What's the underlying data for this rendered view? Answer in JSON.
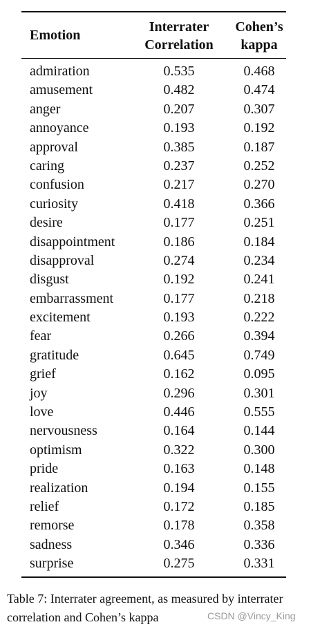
{
  "table": {
    "headers": {
      "emotion": "Emotion",
      "correlation_line1": "Interrater",
      "correlation_line2": "Correlation",
      "kappa_line1": "Cohen’s",
      "kappa_line2": "kappa"
    },
    "rows": [
      {
        "emotion": "admiration",
        "correlation": "0.535",
        "kappa": "0.468"
      },
      {
        "emotion": "amusement",
        "correlation": "0.482",
        "kappa": "0.474"
      },
      {
        "emotion": "anger",
        "correlation": "0.207",
        "kappa": "0.307"
      },
      {
        "emotion": "annoyance",
        "correlation": "0.193",
        "kappa": "0.192"
      },
      {
        "emotion": "approval",
        "correlation": "0.385",
        "kappa": "0.187"
      },
      {
        "emotion": "caring",
        "correlation": "0.237",
        "kappa": "0.252"
      },
      {
        "emotion": "confusion",
        "correlation": "0.217",
        "kappa": "0.270"
      },
      {
        "emotion": "curiosity",
        "correlation": "0.418",
        "kappa": "0.366"
      },
      {
        "emotion": "desire",
        "correlation": "0.177",
        "kappa": "0.251"
      },
      {
        "emotion": "disappointment",
        "correlation": "0.186",
        "kappa": "0.184"
      },
      {
        "emotion": "disapproval",
        "correlation": "0.274",
        "kappa": "0.234"
      },
      {
        "emotion": "disgust",
        "correlation": "0.192",
        "kappa": "0.241"
      },
      {
        "emotion": "embarrassment",
        "correlation": "0.177",
        "kappa": "0.218"
      },
      {
        "emotion": "excitement",
        "correlation": "0.193",
        "kappa": "0.222"
      },
      {
        "emotion": "fear",
        "correlation": "0.266",
        "kappa": "0.394"
      },
      {
        "emotion": "gratitude",
        "correlation": "0.645",
        "kappa": "0.749"
      },
      {
        "emotion": "grief",
        "correlation": "0.162",
        "kappa": "0.095"
      },
      {
        "emotion": "joy",
        "correlation": "0.296",
        "kappa": "0.301"
      },
      {
        "emotion": "love",
        "correlation": "0.446",
        "kappa": "0.555"
      },
      {
        "emotion": "nervousness",
        "correlation": "0.164",
        "kappa": "0.144"
      },
      {
        "emotion": "optimism",
        "correlation": "0.322",
        "kappa": "0.300"
      },
      {
        "emotion": "pride",
        "correlation": "0.163",
        "kappa": "0.148"
      },
      {
        "emotion": "realization",
        "correlation": "0.194",
        "kappa": "0.155"
      },
      {
        "emotion": "relief",
        "correlation": "0.172",
        "kappa": "0.185"
      },
      {
        "emotion": "remorse",
        "correlation": "0.178",
        "kappa": "0.358"
      },
      {
        "emotion": "sadness",
        "correlation": "0.346",
        "kappa": "0.336"
      },
      {
        "emotion": "surprise",
        "correlation": "0.275",
        "kappa": "0.331"
      }
    ]
  },
  "caption": {
    "line1": "Table 7: Interrater agreement, as measured by interrater",
    "line2": "correlation and Cohen’s kappa"
  },
  "watermark": "CSDN @Vincy_King"
}
